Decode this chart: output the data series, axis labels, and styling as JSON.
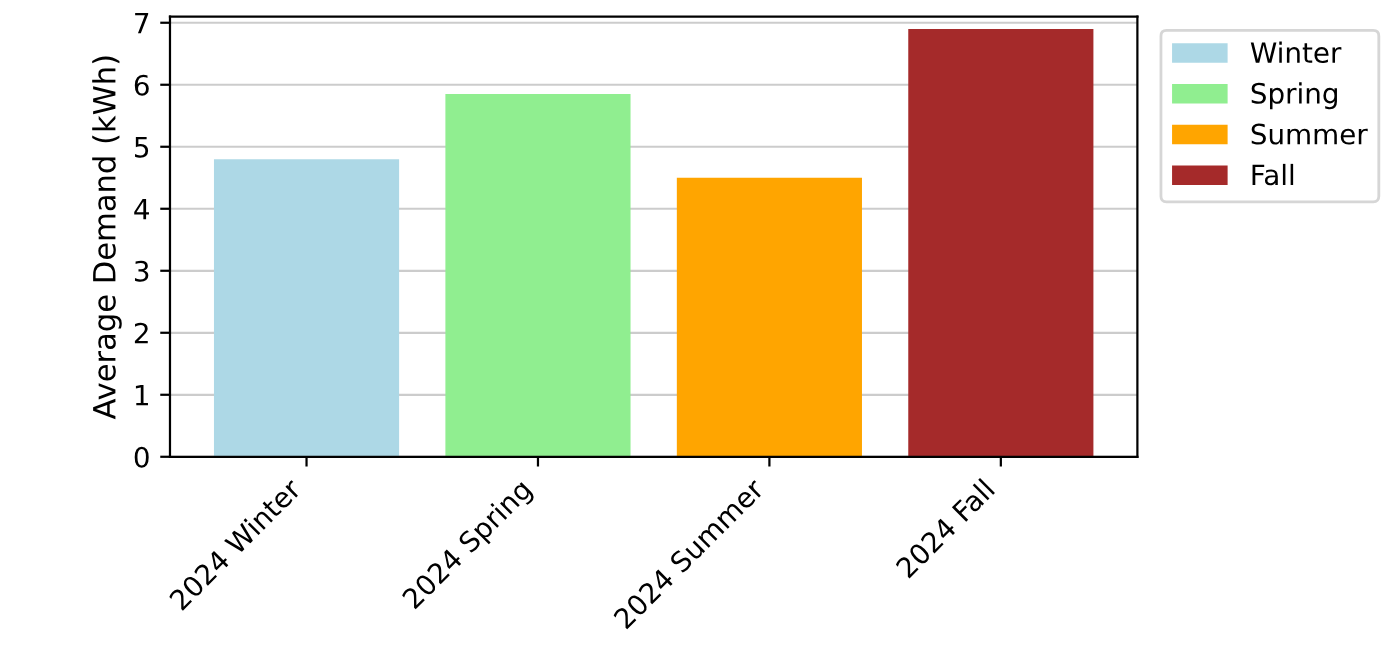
{
  "chart_data": {
    "type": "bar",
    "ylabel": "Average Demand (kWh)",
    "categories": [
      "2024 Winter",
      "2024 Spring",
      "2024 Summer",
      "2024 Fall"
    ],
    "series": [
      {
        "name": "Winter",
        "color": "#add8e6",
        "values": [
          4.8,
          null,
          null,
          null
        ]
      },
      {
        "name": "Spring",
        "color": "#90ee90",
        "values": [
          null,
          5.85,
          null,
          null
        ]
      },
      {
        "name": "Summer",
        "color": "#ffa500",
        "values": [
          null,
          null,
          4.5,
          null
        ]
      },
      {
        "name": "Fall",
        "color": "#a52a2a",
        "values": [
          null,
          null,
          null,
          6.9
        ]
      }
    ],
    "ylim": [
      0,
      7.1
    ],
    "yticks": [
      0,
      1,
      2,
      3,
      4,
      5,
      6,
      7
    ],
    "grid": "y",
    "legend": "right"
  }
}
